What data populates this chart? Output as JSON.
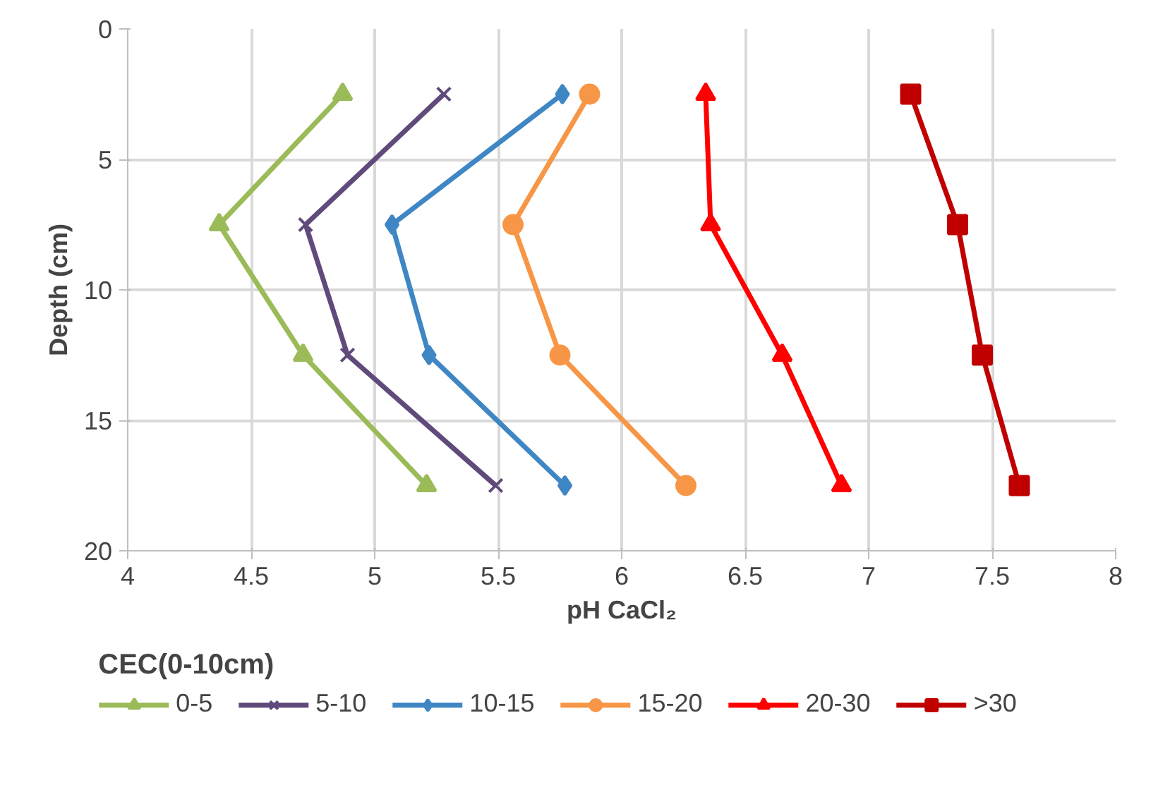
{
  "chart_data": {
    "type": "line",
    "xlabel": "pH CaCl₂",
    "ylabel": "Depth (cm)",
    "legend_title": "CEC(0-10cm)",
    "xlim": [
      4,
      8
    ],
    "xticks": [
      4,
      4.5,
      5,
      5.5,
      6,
      6.5,
      7,
      7.5,
      8
    ],
    "ylim": [
      20,
      0
    ],
    "yticks": [
      0,
      5,
      10,
      15,
      20
    ],
    "grid": true,
    "legend": "bottom",
    "line_style": "solid",
    "series": [
      {
        "name": "0-5",
        "color": "#9bbb59",
        "marker": "triangle",
        "x": [
          4.87,
          4.37,
          4.71,
          5.21
        ],
        "values": [
          2.5,
          7.5,
          12.5,
          17.5
        ]
      },
      {
        "name": "5-10",
        "color": "#604a7b",
        "marker": "cross",
        "x": [
          5.28,
          4.72,
          4.89,
          5.49
        ],
        "values": [
          2.5,
          7.5,
          12.5,
          17.5
        ]
      },
      {
        "name": "10-15",
        "color": "#3f86c4",
        "marker": "diamond",
        "x": [
          5.76,
          5.07,
          5.22,
          5.77
        ],
        "values": [
          2.5,
          7.5,
          12.5,
          17.5
        ]
      },
      {
        "name": "15-20",
        "color": "#f79646",
        "marker": "circle",
        "x": [
          5.87,
          5.56,
          5.75,
          6.26
        ],
        "values": [
          2.5,
          7.5,
          12.5,
          17.5
        ]
      },
      {
        "name": "20-30",
        "color": "#ff0000",
        "marker": "triangle",
        "x": [
          6.34,
          6.36,
          6.65,
          6.89
        ],
        "values": [
          2.5,
          7.5,
          12.5,
          17.5
        ]
      },
      {
        "name": ">30",
        "color": "#c00000",
        "marker": "square",
        "x": [
          7.17,
          7.36,
          7.46,
          7.61
        ],
        "values": [
          2.5,
          7.5,
          12.5,
          17.5
        ]
      }
    ]
  }
}
